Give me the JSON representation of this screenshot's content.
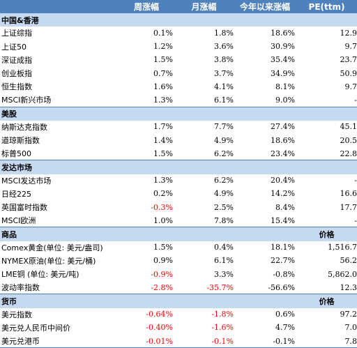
{
  "headers": {
    "name": "",
    "week": "周涨幅",
    "month": "月涨幅",
    "ytd": "今年以来涨幅",
    "pe": "PE(ttm)"
  },
  "sections": [
    {
      "title": "中国&香港",
      "extra": "",
      "rows": [
        {
          "name": "上证综指",
          "week": "0.1%",
          "month": "1.8%",
          "ytd": "18.6%",
          "pe": "12.9"
        },
        {
          "name": "上证50",
          "week": "1.2%",
          "month": "3.6%",
          "ytd": "30.9%",
          "pe": "9.7"
        },
        {
          "name": "深证成指",
          "week": "1.5%",
          "month": "3.8%",
          "ytd": "35.4%",
          "pe": "23.7"
        },
        {
          "name": "创业板指",
          "week": "0.7%",
          "month": "3.7%",
          "ytd": "34.9%",
          "pe": "50.9"
        },
        {
          "name": "恒生指数",
          "week": "1.6%",
          "month": "4.1%",
          "ytd": "8.1%",
          "pe": "9.7"
        },
        {
          "name": "MSCI新兴市场",
          "week": "1.3%",
          "month": "6.1%",
          "ytd": "9.0%",
          "pe": "-"
        }
      ]
    },
    {
      "title": "美股",
      "extra": "",
      "rows": [
        {
          "name": "纳斯达克指数",
          "week": "1.7%",
          "month": "7.7%",
          "ytd": "27.4%",
          "pe": "45.1"
        },
        {
          "name": "道琼斯指数",
          "week": "1.4%",
          "month": "4.9%",
          "ytd": "18.6%",
          "pe": "20.5"
        },
        {
          "name": "标普500",
          "week": "1.5%",
          "month": "6.2%",
          "ytd": "23.4%",
          "pe": "22.8"
        }
      ]
    },
    {
      "title": "发达市场",
      "extra": "",
      "rows": [
        {
          "name": "MSCI发达市场",
          "week": "1.3%",
          "month": "6.2%",
          "ytd": "20.4%",
          "pe": "-"
        },
        {
          "name": "日经225",
          "week": "0.2%",
          "month": "4.9%",
          "ytd": "14.2%",
          "pe": "16.6"
        },
        {
          "name": "英国富时指数",
          "week": "-0.3%",
          "month": "2.5%",
          "ytd": "8.4%",
          "pe": "17.7"
        },
        {
          "name": "MSCI欧洲",
          "week": "1.0%",
          "month": "7.8%",
          "ytd": "15.4%",
          "pe": "-"
        }
      ]
    },
    {
      "title": "商品",
      "extra": "价格",
      "rows": [
        {
          "name": "Comex黄金(单位: 美元/盎司)",
          "week": "1.5%",
          "month": "0.4%",
          "ytd": "18.1%",
          "pe": "1,516.7"
        },
        {
          "name": "NYMEX原油(单位: 美元/桶)",
          "week": "0.9%",
          "month": "6.1%",
          "ytd": "22.7%",
          "pe": "56.2"
        },
        {
          "name": "LME铜 (单位: 美元/吨)",
          "week": "-0.9%",
          "month": "3.3%",
          "ytd": "-0.8%",
          "pe": "5,862.0"
        },
        {
          "name": "波动率指数",
          "week": "-2.8%",
          "month": "-35.7%",
          "ytd": "-56.6%",
          "pe": "12.3"
        }
      ]
    },
    {
      "title": "货币",
      "extra": "价格",
      "rows": [
        {
          "name": "美元指数",
          "week": "-0.64%",
          "month": "-1.8%",
          "ytd": "0.6%",
          "pe": "97.2"
        },
        {
          "name": "美元兑人民币中间价",
          "week": "-0.40%",
          "month": "-1.6%",
          "ytd": "4.7%",
          "pe": "7.0"
        },
        {
          "name": "美元兑港币",
          "week": "-0.01%",
          "month": "-0.1%",
          "ytd": "-0.1%",
          "pe": "7.8"
        }
      ]
    }
  ],
  "colors": {
    "header_bg": "#4f81bd",
    "section_bg": "#c5d9f1",
    "negative": "#ff0000"
  }
}
